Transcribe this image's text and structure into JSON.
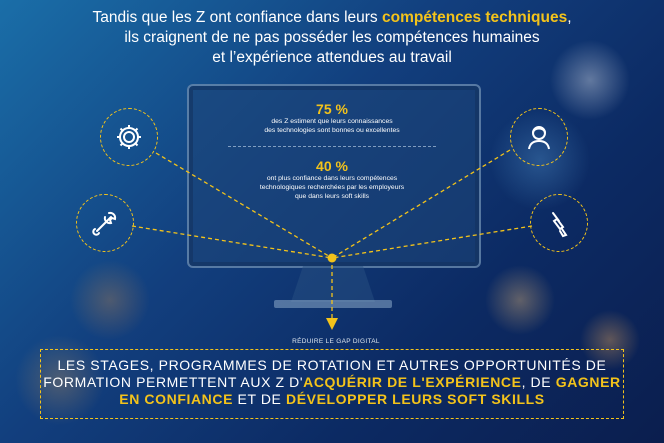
{
  "header": {
    "title_part1": "Tandis que les Z ont confiance dans leurs ",
    "title_highlight": "compétences techniques",
    "title_part2": ",",
    "title_line2": "ils craignent de ne pas posséder les compétences humaines",
    "title_line3": "et l’expérience attendues au travail"
  },
  "stats": [
    {
      "value": "75 %",
      "text_line1": "des Z estiment que leurs connaissances",
      "text_line2": "des technologies sont bonnes ou excellentes"
    },
    {
      "value": "40 %",
      "text_line1": "ont plus confiance dans leurs compétences",
      "text_line2": "technologiques recherchées par les employeurs",
      "text_line3": "que dans leurs soft skills"
    }
  ],
  "reduce_label": "RÉDUIRE LE GAP DIGITAL",
  "footer": {
    "line1": "LES STAGES, PROGRAMMES DE ROTATION ET AUTRES OPPORTUNITÉS DE",
    "line2_a": "FORMATION PERMETTENT AUX Z D'",
    "line2_hl1": "ACQUÉRIR DE L'EXPÉRIENCE",
    "line2_b": ", DE ",
    "line2_hl2": "GAGNER",
    "line3_hl2": "EN CONFIANCE",
    "line3_a": " ET DE ",
    "line3_hl3": "DÉVELOPPER LEURS SOFT SKILLS"
  },
  "icons": [
    "gear-icon",
    "wrench-icon",
    "person-icon",
    "brush-icon"
  ],
  "colors": {
    "accent": "#f3c31b",
    "text": "#ffffff"
  }
}
